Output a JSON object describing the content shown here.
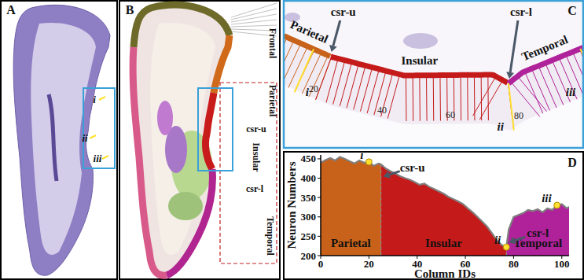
{
  "panels": {
    "A": {
      "label": "A",
      "markers": [
        "i",
        "ii",
        "iii"
      ]
    },
    "B": {
      "label": "B",
      "regions": [
        "Frontal",
        "Parietal",
        "Insular",
        "Temporal"
      ],
      "sulci": [
        "csr-u",
        "csr-l"
      ]
    },
    "C": {
      "label": "C",
      "regions": [
        "Parietal",
        "Insular",
        "Temporal"
      ],
      "sulci": [
        {
          "text": "csr-u",
          "column": 25
        },
        {
          "text": "csr-l",
          "column": 77
        }
      ],
      "points": [
        {
          "text": "i",
          "column": 20
        },
        {
          "text": "ii",
          "column": 77
        },
        {
          "text": "iii",
          "column": 98
        }
      ],
      "column_ticks": [
        20,
        40,
        60,
        80
      ]
    },
    "D": {
      "label": "D"
    }
  },
  "chart_data": {
    "type": "area",
    "x_label": "Column IDs",
    "y_label": "Neuron Numbers",
    "xlim": [
      0,
      103
    ],
    "ylim": [
      200,
      460
    ],
    "xticks": [
      0,
      20,
      40,
      60,
      80,
      100
    ],
    "yticks": [
      200,
      250,
      300,
      350,
      400,
      450
    ],
    "grid": false,
    "series": [
      {
        "name": "Parietal",
        "color": "#c8621a",
        "x": [
          0,
          2,
          4,
          6,
          8,
          10,
          12,
          14,
          16,
          18,
          20,
          22,
          24,
          25
        ],
        "values": [
          440,
          447,
          452,
          446,
          455,
          450,
          444,
          438,
          446,
          440,
          442,
          432,
          438,
          436
        ]
      },
      {
        "name": "Insular",
        "color": "#c41a1a",
        "x": [
          25,
          27,
          29,
          31,
          33,
          35,
          37,
          39,
          41,
          43,
          45,
          47,
          49,
          51,
          53,
          55,
          57,
          59,
          61,
          63,
          65,
          67,
          69,
          71,
          73,
          75,
          77
        ],
        "values": [
          436,
          425,
          418,
          412,
          405,
          400,
          396,
          390,
          383,
          386,
          378,
          372,
          366,
          360,
          352,
          346,
          340,
          333,
          322,
          312,
          300,
          288,
          275,
          258,
          240,
          228,
          222
        ]
      },
      {
        "name": "Temporal",
        "color": "#b0229a",
        "x": [
          77,
          78,
          80,
          82,
          84,
          86,
          88,
          90,
          92,
          94,
          96,
          98,
          100,
          102,
          103
        ],
        "values": [
          222,
          268,
          300,
          305,
          310,
          318,
          315,
          320,
          312,
          322,
          318,
          330,
          333,
          322,
          326
        ]
      }
    ],
    "annotations": [
      {
        "text": "i",
        "x": 20,
        "y": 442
      },
      {
        "text": "ii",
        "x": 77,
        "y": 222
      },
      {
        "text": "iii",
        "x": 98,
        "y": 330
      }
    ],
    "arrows": [
      {
        "text": "csr-u",
        "x": 25,
        "y": 410
      },
      {
        "text": "csr-l",
        "x": 77,
        "y": 240
      }
    ]
  }
}
